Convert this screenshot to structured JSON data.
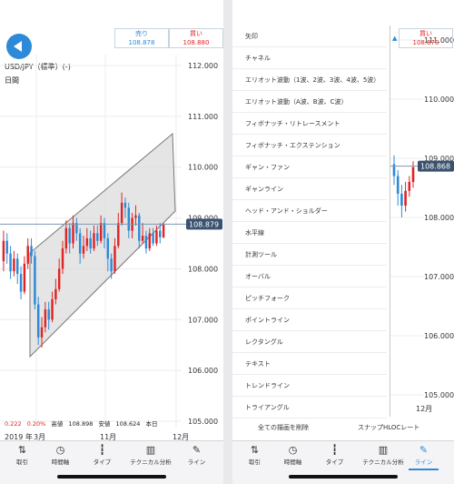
{
  "left": {
    "prices": {
      "sell_label": "売り",
      "sell_value": "108.878",
      "buy_label": "買い",
      "buy_value": "108.880"
    },
    "symbol": "USD/JPY（標準）(-)",
    "period": "日間",
    "current_price": "108.879",
    "y_ticks": [
      "112.000",
      "111.000",
      "110.000",
      "109.000",
      "108.000",
      "107.000",
      "106.000",
      "105.000"
    ],
    "x_labels": [
      "2019 年",
      "3月",
      "11月",
      "12月"
    ],
    "stats": {
      "change": "0.222",
      "change_pct": "0.20%",
      "high_label": "高値",
      "high": "108.898",
      "low_label": "安値",
      "low": "108.624",
      "today": "本日"
    }
  },
  "right": {
    "prices": {
      "sell_arrow": "▲",
      "buy_label": "買い",
      "buy_value": "108.870"
    },
    "current_price": "108.868",
    "y_ticks": [
      "111.000",
      "110.000",
      "109.000",
      "108.000",
      "107.000",
      "106.000",
      "105.000"
    ],
    "x_label": "12月",
    "menu_items": [
      "矢印",
      "チャネル",
      "エリオット波動（1波、2波、3波、4波、5波）",
      "エリオット波動（A波、B波、C波）",
      "フィボナッチ・リトレースメント",
      "フィボナッチ・エクステンション",
      "ギャン・ファン",
      "ギャンライン",
      "ヘッド・アンド・ショルダー",
      "水平線",
      "計測ツール",
      "オーバル",
      "ピッチフォーク",
      "ポイントライン",
      "レクタングル",
      "テキスト",
      "トレンドライン",
      "トライアングル"
    ],
    "footer": {
      "delete_all": "全ての描画を削除",
      "snap": "スナップHLOCレート"
    }
  },
  "tabs": [
    {
      "label": "取引",
      "icon": "updown-arrows-icon",
      "glyph": "⇅"
    },
    {
      "label": "時間軸",
      "icon": "clock-icon",
      "glyph": "◷"
    },
    {
      "label": "タイプ",
      "icon": "candlestick-icon",
      "glyph": "┇"
    },
    {
      "label": "テクニカル分析",
      "icon": "bar-chart-icon",
      "glyph": "▥"
    },
    {
      "label": "ライン",
      "icon": "pen-icon",
      "glyph": "✎"
    }
  ],
  "colors": {
    "accent": "#2c8ad8",
    "up": "#e02424",
    "down": "#2c8ad8",
    "channel_fill": "#dcdcdc"
  },
  "candles": [
    [
      108.15,
      108.55,
      108.75,
      107.95
    ],
    [
      108.55,
      108.3,
      108.7,
      108.1
    ],
    [
      108.3,
      107.95,
      108.45,
      107.8
    ],
    [
      107.95,
      108.2,
      108.35,
      107.85
    ],
    [
      108.2,
      107.9,
      108.3,
      107.7
    ],
    [
      107.9,
      107.55,
      108.05,
      107.4
    ],
    [
      107.55,
      108.1,
      108.25,
      107.5
    ],
    [
      108.1,
      108.45,
      108.6,
      108.0
    ],
    [
      108.45,
      108.25,
      108.6,
      108.1
    ],
    [
      108.25,
      107.3,
      108.35,
      107.2
    ],
    [
      107.3,
      106.65,
      107.45,
      106.5
    ],
    [
      106.65,
      106.85,
      107.05,
      106.45
    ],
    [
      106.85,
      107.2,
      107.35,
      106.75
    ],
    [
      107.2,
      107.0,
      107.35,
      106.8
    ],
    [
      107.0,
      107.4,
      107.55,
      106.95
    ],
    [
      107.4,
      107.6,
      107.8,
      107.3
    ],
    [
      107.6,
      108.0,
      108.2,
      107.55
    ],
    [
      108.0,
      108.4,
      108.55,
      107.9
    ],
    [
      108.4,
      108.8,
      108.95,
      108.3
    ],
    [
      108.8,
      108.5,
      108.9,
      108.3
    ],
    [
      108.5,
      108.9,
      109.05,
      108.4
    ],
    [
      108.9,
      108.7,
      109.0,
      108.55
    ],
    [
      108.7,
      108.3,
      108.8,
      108.1
    ],
    [
      108.3,
      108.45,
      108.65,
      108.2
    ],
    [
      108.45,
      108.6,
      108.8,
      108.35
    ],
    [
      108.6,
      108.4,
      108.75,
      108.3
    ],
    [
      108.4,
      108.7,
      108.85,
      108.35
    ],
    [
      108.7,
      108.55,
      108.85,
      108.45
    ],
    [
      108.55,
      108.9,
      109.05,
      108.5
    ],
    [
      108.9,
      108.6,
      109.0,
      108.4
    ],
    [
      108.6,
      108.2,
      108.7,
      107.95
    ],
    [
      108.2,
      107.95,
      108.3,
      107.8
    ],
    [
      107.95,
      108.45,
      108.6,
      107.9
    ],
    [
      108.45,
      108.9,
      109.1,
      108.4
    ],
    [
      108.9,
      109.3,
      109.5,
      108.85
    ],
    [
      109.3,
      109.2,
      109.4,
      109.0
    ],
    [
      109.2,
      108.75,
      109.3,
      108.6
    ],
    [
      108.75,
      109.0,
      109.1,
      108.6
    ],
    [
      109.0,
      109.05,
      109.25,
      108.85
    ],
    [
      109.05,
      108.55,
      109.1,
      108.4
    ],
    [
      108.55,
      108.65,
      108.9,
      108.5
    ],
    [
      108.65,
      108.4,
      108.75,
      108.3
    ],
    [
      108.4,
      108.7,
      108.8,
      108.35
    ],
    [
      108.7,
      108.5,
      108.8,
      108.45
    ],
    [
      108.5,
      108.75,
      108.85,
      108.45
    ],
    [
      108.75,
      108.62,
      108.9,
      108.5
    ],
    [
      108.62,
      108.88,
      108.9,
      108.6
    ]
  ],
  "mini_candles": [
    [
      108.9,
      108.7,
      109.05,
      108.55
    ],
    [
      108.7,
      108.4,
      108.8,
      108.2
    ],
    [
      108.4,
      108.2,
      108.55,
      108.0
    ],
    [
      108.2,
      108.45,
      108.6,
      108.1
    ],
    [
      108.45,
      108.6,
      108.7,
      108.35
    ],
    [
      108.6,
      108.85,
      108.95,
      108.5
    ]
  ]
}
